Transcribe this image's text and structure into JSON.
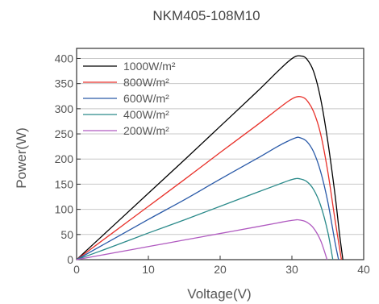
{
  "chart_data": {
    "type": "line",
    "title": "NKM405-108M10",
    "xlabel": "Voltage(V)",
    "ylabel": "Power(W)",
    "xlim": [
      0,
      40
    ],
    "ylim": [
      0,
      420
    ],
    "xticks": [
      0,
      10,
      20,
      30,
      40
    ],
    "yticks": [
      0,
      50,
      100,
      150,
      200,
      250,
      300,
      350,
      400
    ],
    "grid": "horizontal",
    "legend_position": "top-left",
    "series": [
      {
        "name": "1000W/m²",
        "color": "#000000",
        "x": [
          0,
          5,
          10,
          15,
          20,
          25,
          28,
          29.5,
          30.5,
          31.2,
          32,
          33,
          34,
          35,
          36,
          36.6,
          37.1
        ],
        "values": [
          0,
          66,
          132,
          198,
          265,
          332,
          374,
          394,
          404,
          405,
          400,
          375,
          320,
          235,
          130,
          55,
          0
        ]
      },
      {
        "name": "800W/m²",
        "color": "#e8312a",
        "x": [
          0,
          5,
          10,
          15,
          20,
          25,
          28,
          29.5,
          30.5,
          31.2,
          32,
          33,
          34,
          35,
          36,
          36.9
        ],
        "values": [
          0,
          53,
          106,
          159,
          213,
          266,
          299,
          315,
          323,
          324,
          318,
          295,
          250,
          175,
          80,
          0
        ]
      },
      {
        "name": "600W/m²",
        "color": "#2a5aa8",
        "x": [
          0,
          5,
          10,
          15,
          20,
          25,
          28,
          29.5,
          30.5,
          31,
          32,
          33,
          34,
          35,
          36,
          36.5
        ],
        "values": [
          0,
          40,
          80,
          119,
          160,
          200,
          225,
          236,
          242,
          243,
          236,
          215,
          175,
          115,
          35,
          0
        ]
      },
      {
        "name": "400W/m²",
        "color": "#2a8a8a",
        "x": [
          0,
          5,
          10,
          15,
          20,
          25,
          28,
          29.5,
          30.5,
          31,
          32,
          33,
          34,
          35,
          35.7
        ],
        "values": [
          0,
          26,
          53,
          79,
          106,
          133,
          149,
          157,
          161,
          161,
          156,
          140,
          108,
          55,
          0
        ]
      },
      {
        "name": "200W/m²",
        "color": "#b05ac0",
        "x": [
          0,
          5,
          10,
          15,
          20,
          25,
          28,
          29.5,
          30.5,
          31,
          32,
          33,
          34,
          34.9
        ],
        "values": [
          0,
          13,
          26,
          39,
          52,
          65,
          73,
          77,
          79,
          79,
          75,
          63,
          38,
          0
        ]
      }
    ]
  }
}
